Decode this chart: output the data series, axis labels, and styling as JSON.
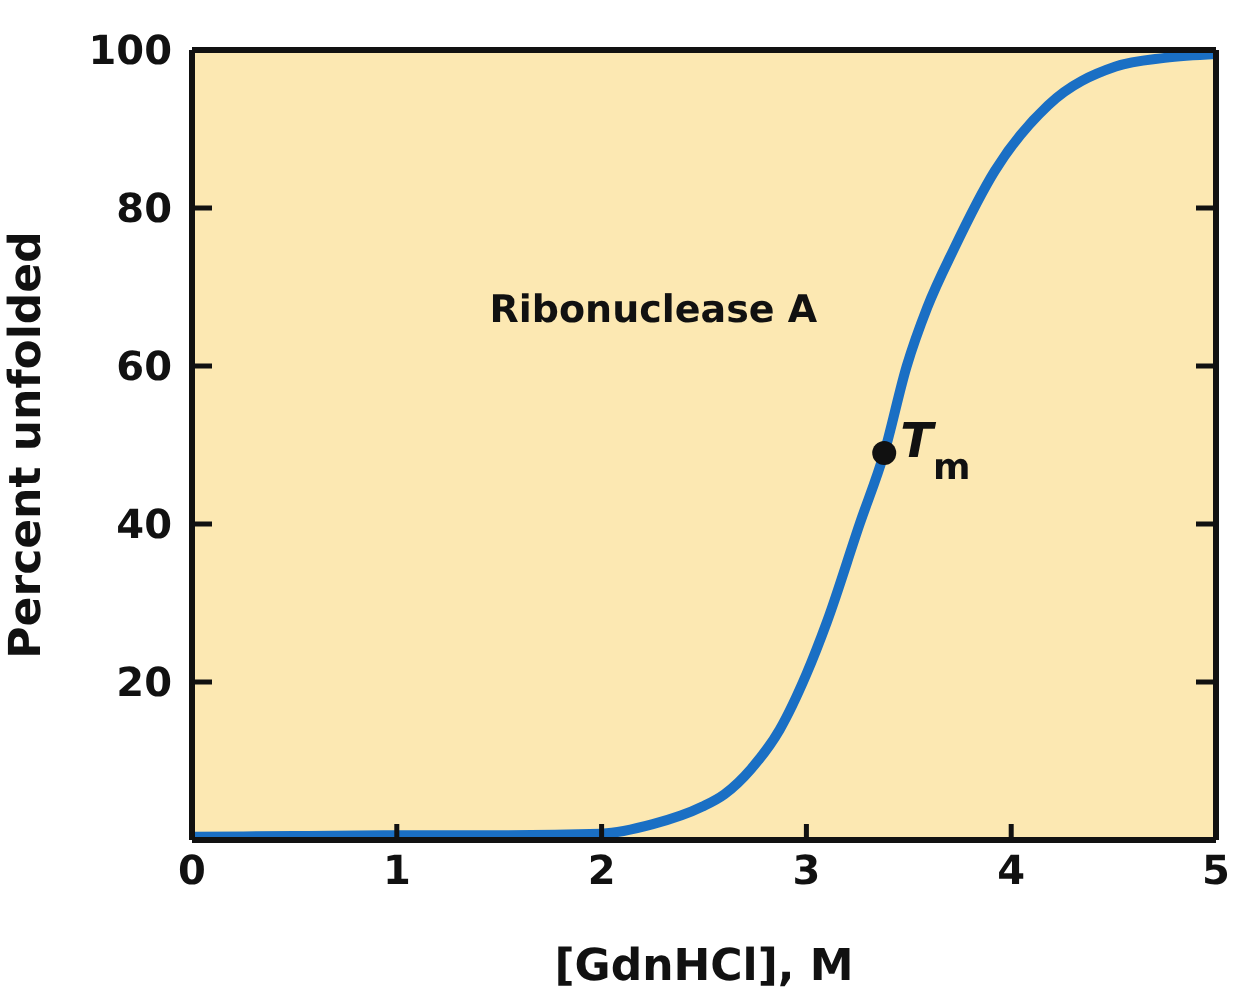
{
  "chart_data": {
    "type": "line",
    "xlabel": "[GdnHCl], M",
    "ylabel": "Percent unfolded",
    "marker": "none",
    "line_style": "solid",
    "x": [
      0,
      0.5,
      1,
      1.5,
      2,
      2.25,
      2.49,
      2.6,
      2.73,
      2.87,
      3.0,
      3.1,
      3.26,
      3.38,
      3.49,
      3.59,
      3.72,
      3.92,
      4.18,
      4.51,
      4.75,
      5
    ],
    "series": [
      {
        "name": "Ribonuclease A",
        "color": "#1a6fc4",
        "values": [
          0.4,
          0.5,
          0.6,
          0.6,
          0.8,
          2,
          4.2,
          5.8,
          9,
          14,
          21,
          27.6,
          40,
          49,
          60,
          67.4,
          74.8,
          84.7,
          93,
          97.9,
          99,
          99.5
        ]
      }
    ],
    "xlim": [
      0,
      5
    ],
    "xticks": [
      0,
      1,
      2,
      3,
      4,
      5
    ],
    "ylim": [
      0,
      100
    ],
    "yticks": [
      20,
      40,
      60,
      80,
      100
    ],
    "annotations": [
      {
        "text": "T$_{m}$",
        "x": 3.38,
        "y": 49
      }
    ]
  }
}
